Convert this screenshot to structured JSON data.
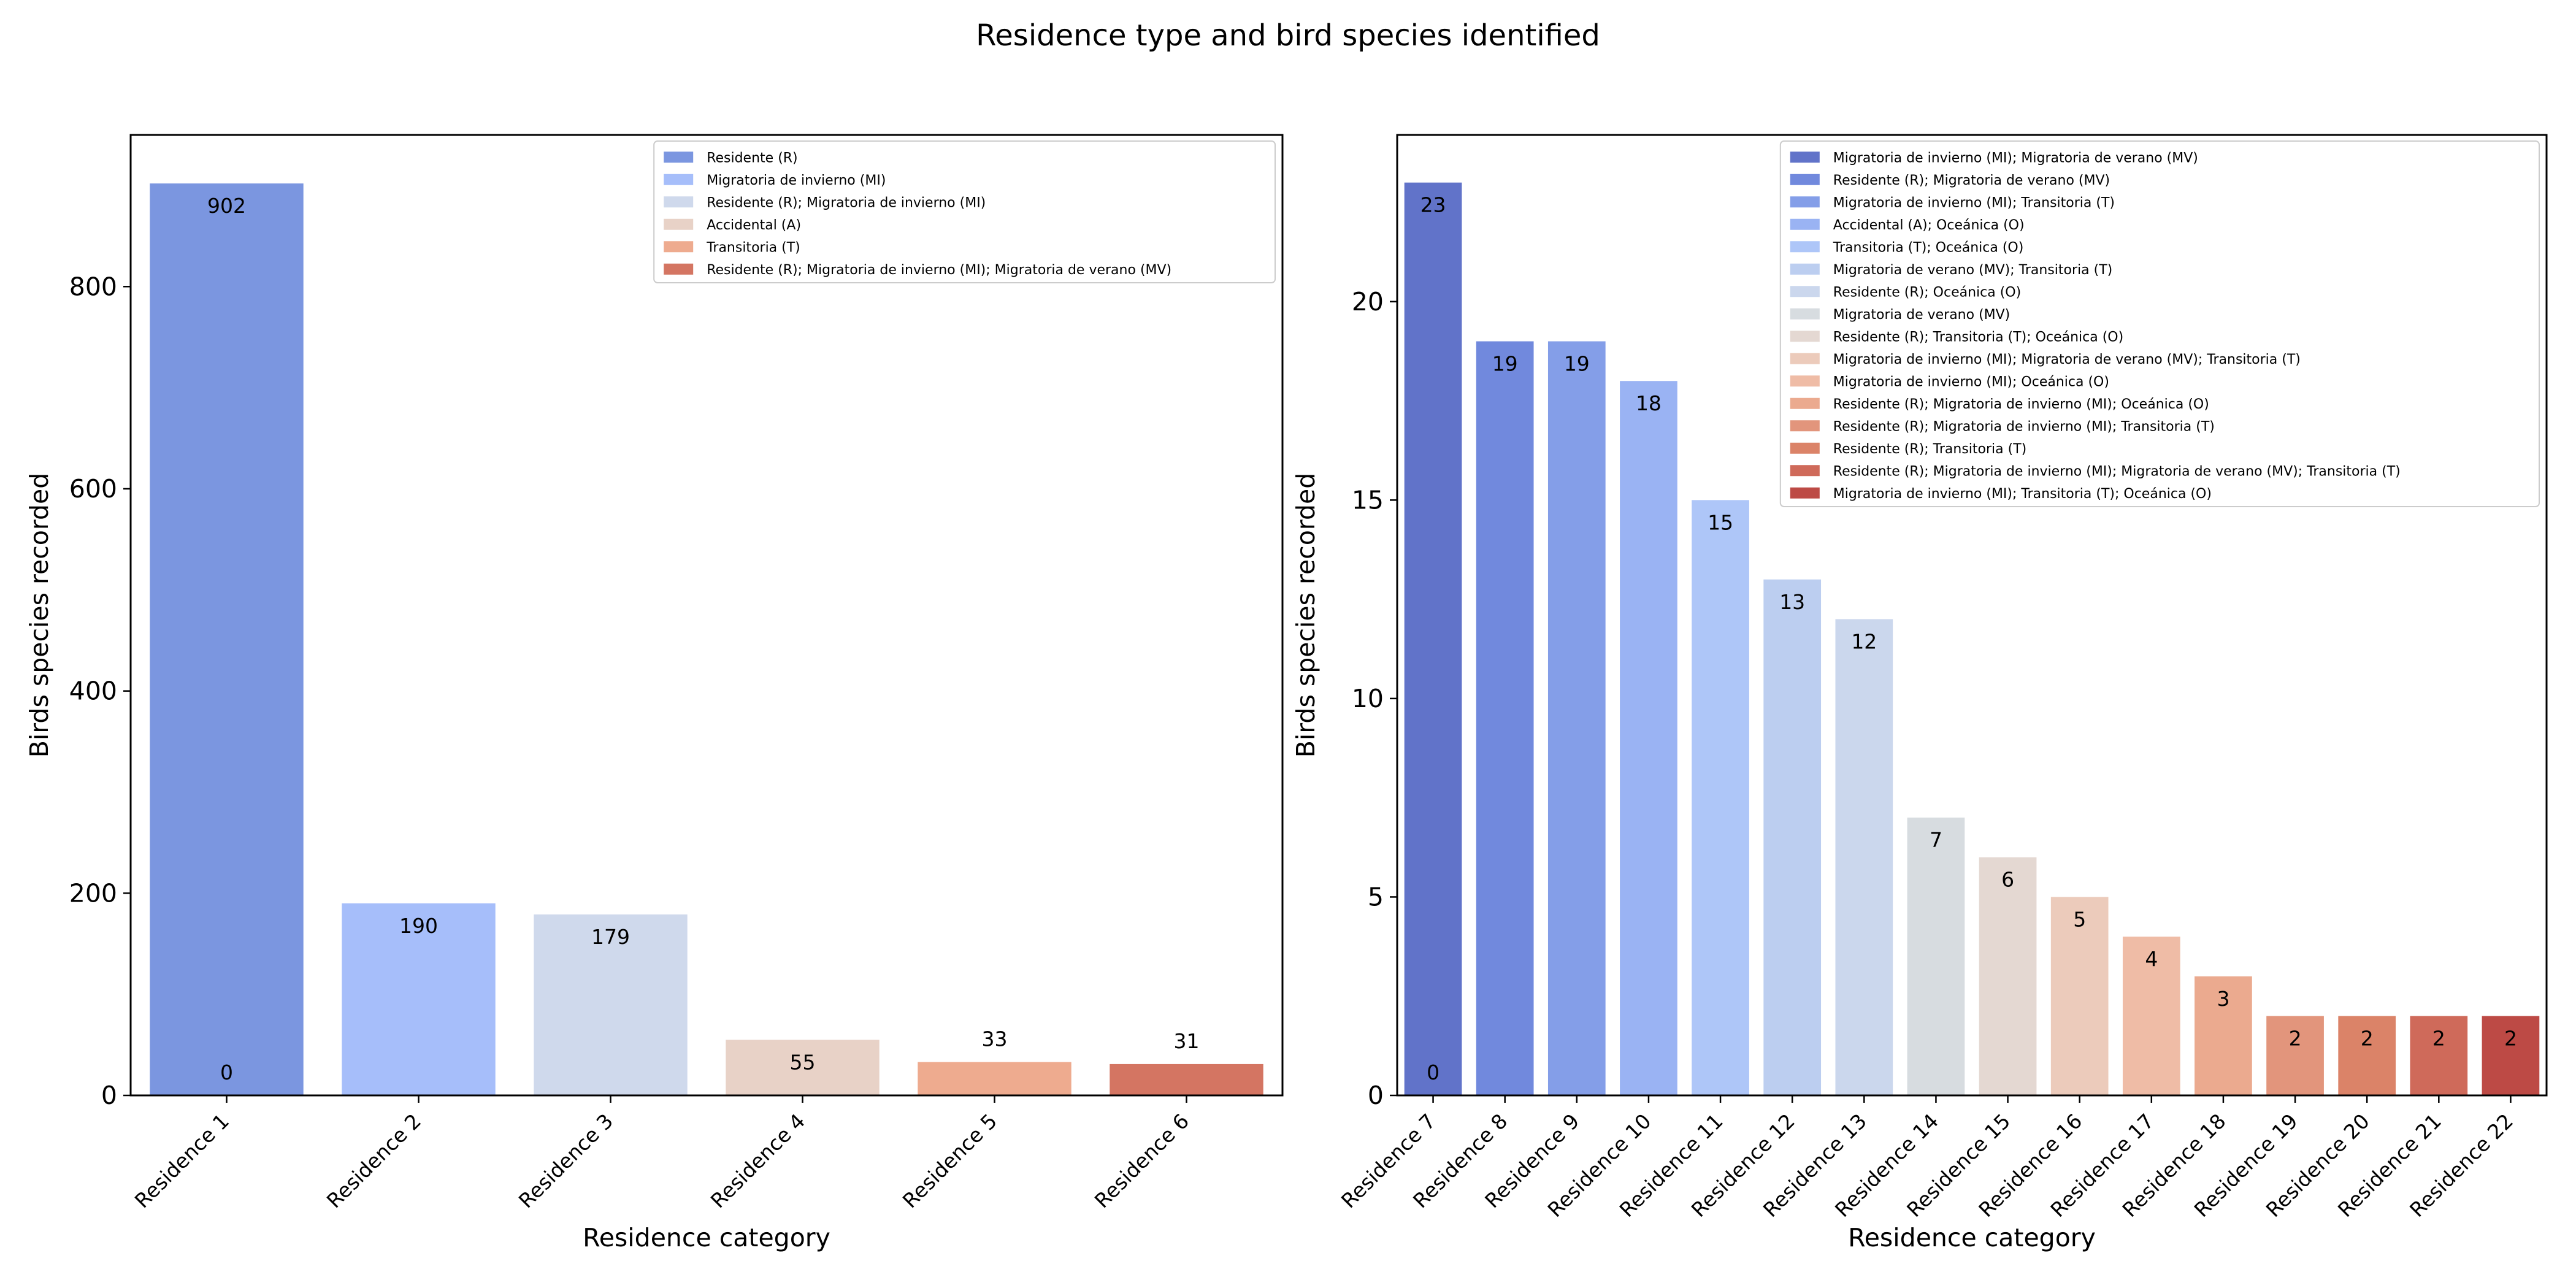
{
  "figure": {
    "title": "Residence type and bird species identified"
  },
  "chart_data": [
    {
      "type": "bar",
      "xlabel": "Residence category",
      "ylabel": "Birds species recorded",
      "ylim": [
        0,
        950
      ],
      "yticks": [
        0,
        200,
        400,
        600,
        800
      ],
      "categories": [
        "Residence 1",
        "Residence 2",
        "Residence 3",
        "Residence 4",
        "Residence 5",
        "Residence 6"
      ],
      "values": [
        902,
        190,
        179,
        55,
        33,
        31
      ],
      "colors": [
        "#7b96e0",
        "#a6befa",
        "#cfd9ec",
        "#e8d2c7",
        "#eeab8f",
        "#d47562"
      ],
      "legend": [
        "Residente (R)",
        "Migratoria de invierno (MI)",
        "Residente (R); Migratoria de invierno (MI)",
        "Accidental (A)",
        "Transitoria (T)",
        "Residente (R); Migratoria de invierno (MI); Migratoria de verano (MV)"
      ],
      "legend_position": "top-right",
      "annotations": [
        {
          "category": "Residence 1",
          "text": "0",
          "value": 0
        }
      ],
      "grid": false
    },
    {
      "type": "bar",
      "xlabel": "Residence category",
      "ylabel": "Birds species recorded",
      "ylim": [
        0,
        24.2
      ],
      "yticks": [
        0,
        5,
        10,
        15,
        20
      ],
      "categories": [
        "Residence 7",
        "Residence 8",
        "Residence 9",
        "Residence 10",
        "Residence 11",
        "Residence 12",
        "Residence 13",
        "Residence 14",
        "Residence 15",
        "Residence 16",
        "Residence 17",
        "Residence 18",
        "Residence 19",
        "Residence 20",
        "Residence 21",
        "Residence 22"
      ],
      "values": [
        23,
        19,
        19,
        18,
        15,
        13,
        12,
        7,
        6,
        5,
        4,
        3,
        2,
        2,
        2,
        2
      ],
      "colors": [
        "#6173c9",
        "#7189dd",
        "#849ee8",
        "#9ab3f3",
        "#aec6f8",
        "#bccef0",
        "#cbd7ed",
        "#d7dce0",
        "#e4d8d2",
        "#eccbbb",
        "#efbca6",
        "#ebaa8f",
        "#e2957c",
        "#db8368",
        "#cf6a5a",
        "#bd4a45"
      ],
      "legend": [
        "Migratoria de invierno (MI); Migratoria de verano (MV)",
        "Residente (R); Migratoria de verano (MV)",
        "Migratoria de invierno (MI); Transitoria (T)",
        "Accidental (A); Oceánica (O)",
        "Transitoria (T); Oceánica (O)",
        "Migratoria de verano (MV); Transitoria (T)",
        "Residente (R); Oceánica (O)",
        "Migratoria de verano (MV)",
        "Residente (R); Transitoria (T); Oceánica (O)",
        "Migratoria de invierno (MI); Migratoria de verano (MV); Transitoria (T)",
        "Migratoria de invierno (MI); Oceánica (O)",
        "Residente (R); Migratoria de invierno (MI); Oceánica (O)",
        "Residente (R); Migratoria de invierno (MI); Transitoria (T)",
        "Residente (R); Transitoria (T)",
        "Residente (R); Migratoria de invierno (MI); Migratoria de verano (MV); Transitoria (T)",
        "Migratoria de invierno (MI); Transitoria (T); Oceánica (O)"
      ],
      "legend_position": "top-right",
      "annotations": [
        {
          "category": "Residence 7",
          "text": "0",
          "value": 0
        }
      ],
      "grid": false
    }
  ]
}
